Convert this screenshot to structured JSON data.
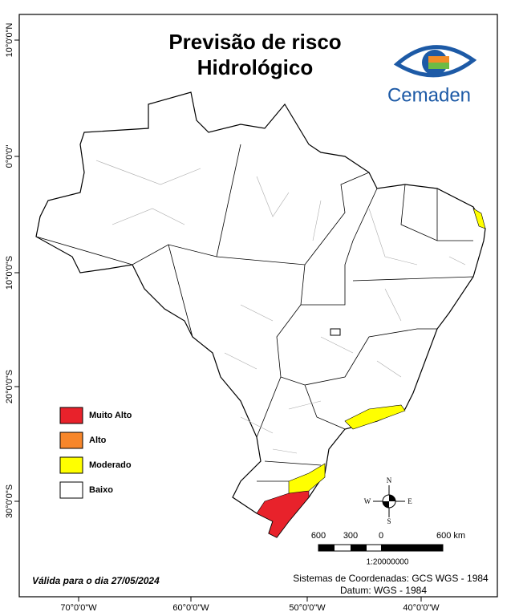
{
  "title": [
    "Previsão de risco",
    "Hidrológico"
  ],
  "logo": "Cemaden",
  "legend": [
    {
      "label": "Muito Alto",
      "color": "#e8222b"
    },
    {
      "label": "Alto",
      "color": "#f7862a"
    },
    {
      "label": "Moderado",
      "color": "#ffff00"
    },
    {
      "label": "Baixo",
      "color": "#ffffff"
    }
  ],
  "graticule": {
    "lat_labels": [
      "10°0'0\"N",
      "0°0'0\"",
      "10°0'0\"S",
      "20°0'0\"S",
      "30°0'0\"S"
    ],
    "lon_labels": [
      "70°0'0\"W",
      "60°0'0\"W",
      "50°0'0\"W",
      "40°0'0\"W"
    ]
  },
  "compass": {
    "north": "N",
    "south": "S",
    "east": "E",
    "west": "W"
  },
  "scale_bar": {
    "labels": [
      "600",
      "300",
      "0",
      "600 km"
    ],
    "ratio": "1:20000000"
  },
  "footer": {
    "valid": "Válida para o dia 27/05/2024",
    "coordinates": "Sistemas de Coordenadas: GCS WGS - 1984",
    "datum": "Datum: WGS - 1984"
  }
}
